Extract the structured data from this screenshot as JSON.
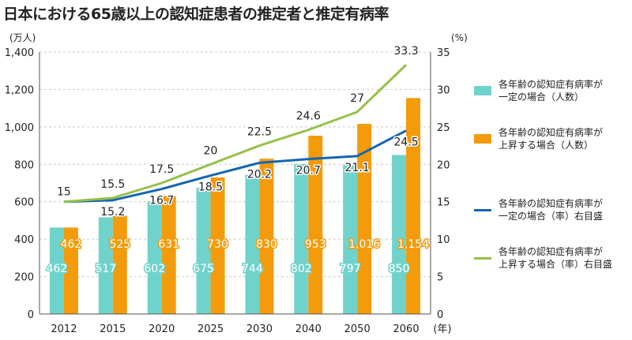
{
  "chart_data": {
    "type": "bar+line",
    "title": "日本における65歳以上の認知症患者の推定者と推定有病率",
    "categories": [
      "2012",
      "2015",
      "2020",
      "2025",
      "2030",
      "2040",
      "2050",
      "2060"
    ],
    "x_unit": "(年)",
    "y_left": {
      "unit": "(万人)",
      "min": 0,
      "max": 1400,
      "ticks": [
        0,
        200,
        400,
        600,
        800,
        "1,000",
        "1,200",
        "1,400"
      ]
    },
    "y_right": {
      "unit": "(%)",
      "min": 0,
      "max": 35,
      "ticks": [
        0,
        5,
        10,
        15,
        20,
        25,
        30,
        35
      ]
    },
    "grid": true,
    "series": [
      {
        "name": "各年齢の認知症有病率が一定の場合（人数）",
        "type": "bar",
        "axis": "left",
        "color": "#6fd3cc",
        "values": [
          462,
          517,
          602,
          675,
          744,
          802,
          797,
          850
        ],
        "labels": [
          "462",
          "517",
          "602",
          "675",
          "744",
          "802",
          "797",
          "850"
        ]
      },
      {
        "name": "各年齢の認知症有病率が上昇する場合（人数）",
        "type": "bar",
        "axis": "left",
        "color": "#f39b0b",
        "values": [
          462,
          525,
          631,
          730,
          830,
          953,
          1016,
          1154
        ],
        "labels": [
          "462",
          "525",
          "631",
          "730",
          "830",
          "953",
          "1,016",
          "1,154"
        ]
      },
      {
        "name": "各年齢の認知症有病率が一定の場合（率）右目盛",
        "type": "line",
        "axis": "right",
        "color": "#1566b0",
        "values": [
          15,
          15.2,
          16.7,
          18.5,
          20.2,
          20.7,
          21.1,
          24.5
        ],
        "labels": [
          "15",
          "15.2",
          "16.7",
          "18.5",
          "20.2",
          "20.7",
          "21.1",
          "24.5"
        ]
      },
      {
        "name": "各年齢の認知症有病率が上昇する場合（率）右目盛",
        "type": "line",
        "axis": "right",
        "color": "#97c04a",
        "values": [
          15,
          15.5,
          17.5,
          20,
          22.5,
          24.6,
          27,
          33.3
        ],
        "labels": [
          "15",
          "15.5",
          "17.5",
          "20",
          "22.5",
          "24.6",
          "27",
          "33.3"
        ]
      }
    ],
    "legend": {
      "position": "right",
      "items": [
        {
          "line1": "各年齢の認知症有病率が",
          "line2": "一定の場合（人数）",
          "color": "#6fd3cc",
          "kind": "box"
        },
        {
          "line1": "各年齢の認知症有病率が",
          "line2": "上昇する場合（人数）",
          "color": "#f39b0b",
          "kind": "box"
        },
        {
          "line1": "各年齢の認知症有病率が",
          "line2": "一定の場合（率）右目盛",
          "color": "#1566b0",
          "kind": "line"
        },
        {
          "line1": "各年齢の認知症有病率が",
          "line2": "上昇する場合（率）右目盛",
          "color": "#97c04a",
          "kind": "line"
        }
      ]
    }
  }
}
